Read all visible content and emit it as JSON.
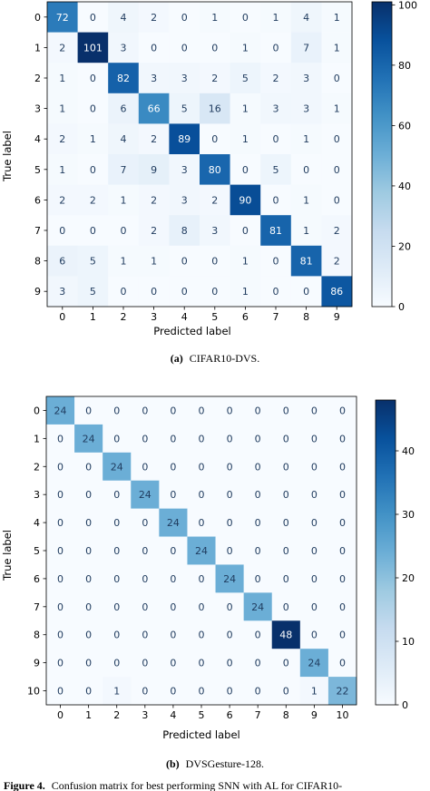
{
  "chart_data": [
    {
      "type": "heatmap",
      "title": "",
      "xlabel": "Predicted label",
      "ylabel": "True label",
      "caption_letter": "(a)",
      "caption_text": "CIFAR10-DVS.",
      "x_categories": [
        "0",
        "1",
        "2",
        "3",
        "4",
        "5",
        "6",
        "7",
        "8",
        "9"
      ],
      "y_categories": [
        "0",
        "1",
        "2",
        "3",
        "4",
        "5",
        "6",
        "7",
        "8",
        "9"
      ],
      "matrix": [
        [
          72,
          0,
          4,
          2,
          0,
          1,
          0,
          1,
          4,
          1
        ],
        [
          2,
          101,
          3,
          0,
          0,
          0,
          1,
          0,
          7,
          1
        ],
        [
          1,
          0,
          82,
          3,
          3,
          2,
          5,
          2,
          3,
          0
        ],
        [
          1,
          0,
          6,
          66,
          5,
          16,
          1,
          3,
          3,
          1
        ],
        [
          2,
          1,
          4,
          2,
          89,
          0,
          1,
          0,
          1,
          0
        ],
        [
          1,
          0,
          7,
          9,
          3,
          80,
          0,
          5,
          0,
          0
        ],
        [
          2,
          2,
          1,
          2,
          3,
          2,
          90,
          0,
          1,
          0
        ],
        [
          0,
          0,
          0,
          2,
          8,
          3,
          0,
          81,
          1,
          2
        ],
        [
          6,
          5,
          1,
          1,
          0,
          0,
          1,
          0,
          81,
          2
        ],
        [
          3,
          5,
          0,
          0,
          0,
          0,
          1,
          0,
          0,
          86
        ]
      ],
      "colorbar": {
        "min": 0,
        "max": 101,
        "ticks": [
          0,
          20,
          40,
          60,
          80,
          100
        ]
      },
      "colormap": "Blues"
    },
    {
      "type": "heatmap",
      "title": "",
      "xlabel": "Predicted label",
      "ylabel": "True label",
      "caption_letter": "(b)",
      "caption_text": "DVSGesture-128.",
      "x_categories": [
        "0",
        "1",
        "2",
        "3",
        "4",
        "5",
        "6",
        "7",
        "8",
        "9",
        "10"
      ],
      "y_categories": [
        "0",
        "1",
        "2",
        "3",
        "4",
        "5",
        "6",
        "7",
        "8",
        "9",
        "10"
      ],
      "matrix": [
        [
          24,
          0,
          0,
          0,
          0,
          0,
          0,
          0,
          0,
          0,
          0
        ],
        [
          0,
          24,
          0,
          0,
          0,
          0,
          0,
          0,
          0,
          0,
          0
        ],
        [
          0,
          0,
          24,
          0,
          0,
          0,
          0,
          0,
          0,
          0,
          0
        ],
        [
          0,
          0,
          0,
          24,
          0,
          0,
          0,
          0,
          0,
          0,
          0
        ],
        [
          0,
          0,
          0,
          0,
          24,
          0,
          0,
          0,
          0,
          0,
          0
        ],
        [
          0,
          0,
          0,
          0,
          0,
          24,
          0,
          0,
          0,
          0,
          0
        ],
        [
          0,
          0,
          0,
          0,
          0,
          0,
          24,
          0,
          0,
          0,
          0
        ],
        [
          0,
          0,
          0,
          0,
          0,
          0,
          0,
          24,
          0,
          0,
          0
        ],
        [
          0,
          0,
          0,
          0,
          0,
          0,
          0,
          0,
          48,
          0,
          0
        ],
        [
          0,
          0,
          0,
          0,
          0,
          0,
          0,
          0,
          0,
          24,
          0
        ],
        [
          0,
          0,
          1,
          0,
          0,
          0,
          0,
          0,
          0,
          1,
          22
        ]
      ],
      "colorbar": {
        "min": 0,
        "max": 48,
        "ticks": [
          0,
          10,
          20,
          30,
          40
        ]
      },
      "colormap": "Blues"
    }
  ],
  "footer": {
    "figure_label": "Figure 4.",
    "figure_text": "Confusion matrix for best performing SNN with AL for CIFAR10-"
  }
}
